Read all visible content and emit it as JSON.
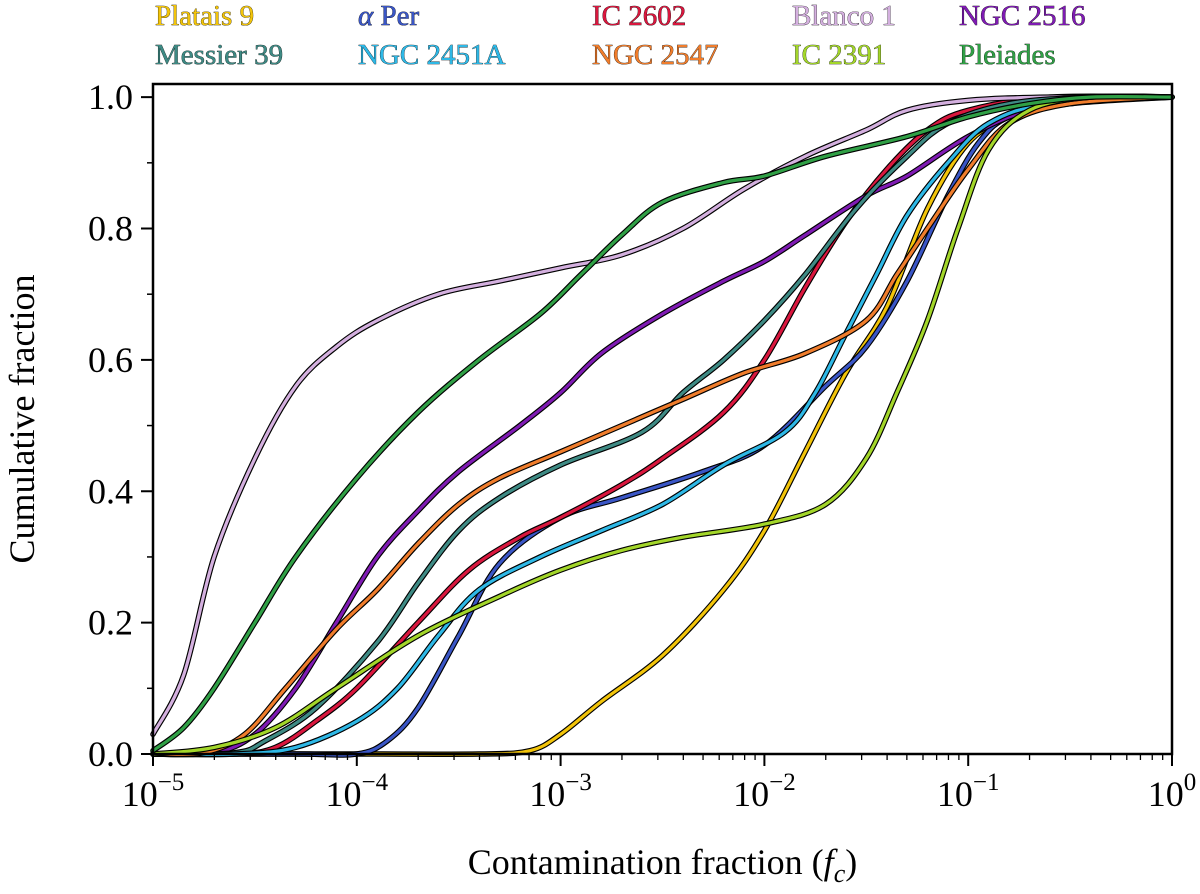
{
  "chart_data": {
    "type": "line",
    "xlabel": "Contamination fraction",
    "xlabel_symbol": "f",
    "xlabel_symbol_sub": "c",
    "ylabel": "Cumulative fraction",
    "xscale": "log",
    "xlim": [
      1e-05,
      1
    ],
    "ylim": [
      0,
      1.02
    ],
    "grid": false,
    "legend_placement": "top (above plot), 5 columns x 2 rows",
    "x_ticks": [
      {
        "base": "10",
        "exp": "−5"
      },
      {
        "base": "10",
        "exp": "−4"
      },
      {
        "base": "10",
        "exp": "−3"
      },
      {
        "base": "10",
        "exp": "−2"
      },
      {
        "base": "10",
        "exp": "−1"
      },
      {
        "base": "10",
        "exp": "0"
      }
    ],
    "y_ticks": [
      "0.0",
      "0.2",
      "0.4",
      "0.6",
      "0.8",
      "1.0"
    ],
    "series": [
      {
        "name": "Platais 9",
        "color": "#f2c40a",
        "points": [
          [
            -5,
            0
          ],
          [
            -4,
            0
          ],
          [
            -3.4,
            0
          ],
          [
            -3.15,
            0.005
          ],
          [
            -3,
            0.03
          ],
          [
            -2.8,
            0.08
          ],
          [
            -2.5,
            0.15
          ],
          [
            -2.2,
            0.25
          ],
          [
            -2,
            0.34
          ],
          [
            -1.8,
            0.46
          ],
          [
            -1.6,
            0.58
          ],
          [
            -1.4,
            0.68
          ],
          [
            -1.2,
            0.83
          ],
          [
            -1,
            0.93
          ],
          [
            -0.8,
            0.97
          ],
          [
            -0.6,
            0.99
          ],
          [
            -0.3,
            1.0
          ],
          [
            0,
            1.0
          ]
        ]
      },
      {
        "name": "α Per",
        "color": "#3a56c6",
        "points": [
          [
            -5,
            0
          ],
          [
            -4.3,
            0
          ],
          [
            -4.0,
            0
          ],
          [
            -3.85,
            0.02
          ],
          [
            -3.7,
            0.07
          ],
          [
            -3.5,
            0.18
          ],
          [
            -3.3,
            0.29
          ],
          [
            -3.0,
            0.36
          ],
          [
            -2.7,
            0.39
          ],
          [
            -2.3,
            0.43
          ],
          [
            -2.0,
            0.47
          ],
          [
            -1.7,
            0.56
          ],
          [
            -1.5,
            0.62
          ],
          [
            -1.3,
            0.72
          ],
          [
            -1.1,
            0.85
          ],
          [
            -0.95,
            0.93
          ],
          [
            -0.8,
            0.97
          ],
          [
            -0.5,
            0.99
          ],
          [
            0,
            1.0
          ]
        ]
      },
      {
        "name": "IC 2602",
        "color": "#d9173e",
        "points": [
          [
            -5,
            0
          ],
          [
            -4.6,
            0
          ],
          [
            -4.4,
            0.01
          ],
          [
            -4.2,
            0.05
          ],
          [
            -4.0,
            0.1
          ],
          [
            -3.7,
            0.2
          ],
          [
            -3.45,
            0.28
          ],
          [
            -3.2,
            0.33
          ],
          [
            -3.0,
            0.36
          ],
          [
            -2.7,
            0.41
          ],
          [
            -2.5,
            0.45
          ],
          [
            -2.2,
            0.52
          ],
          [
            -2.0,
            0.6
          ],
          [
            -1.8,
            0.71
          ],
          [
            -1.6,
            0.81
          ],
          [
            -1.4,
            0.89
          ],
          [
            -1.2,
            0.95
          ],
          [
            -1.0,
            0.98
          ],
          [
            -0.6,
            1.0
          ],
          [
            0,
            1.0
          ]
        ]
      },
      {
        "name": "Blanco 1",
        "color": "#d4b0df",
        "points": [
          [
            -5,
            0.03
          ],
          [
            -4.85,
            0.12
          ],
          [
            -4.7,
            0.3
          ],
          [
            -4.5,
            0.45
          ],
          [
            -4.3,
            0.56
          ],
          [
            -4.1,
            0.62
          ],
          [
            -3.9,
            0.66
          ],
          [
            -3.6,
            0.7
          ],
          [
            -3.3,
            0.72
          ],
          [
            -3.0,
            0.74
          ],
          [
            -2.7,
            0.76
          ],
          [
            -2.4,
            0.8
          ],
          [
            -2.1,
            0.86
          ],
          [
            -1.8,
            0.91
          ],
          [
            -1.5,
            0.95
          ],
          [
            -1.3,
            0.98
          ],
          [
            -1.0,
            0.995
          ],
          [
            -0.6,
            1.0
          ],
          [
            0,
            1.0
          ]
        ]
      },
      {
        "name": "NGC 2516",
        "color": "#7f1bb3",
        "points": [
          [
            -5,
            0
          ],
          [
            -4.7,
            0.002
          ],
          [
            -4.5,
            0.03
          ],
          [
            -4.3,
            0.1
          ],
          [
            -4.1,
            0.2
          ],
          [
            -3.9,
            0.3
          ],
          [
            -3.7,
            0.37
          ],
          [
            -3.5,
            0.43
          ],
          [
            -3.2,
            0.5
          ],
          [
            -3.0,
            0.55
          ],
          [
            -2.8,
            0.61
          ],
          [
            -2.5,
            0.67
          ],
          [
            -2.2,
            0.72
          ],
          [
            -2.0,
            0.75
          ],
          [
            -1.8,
            0.79
          ],
          [
            -1.5,
            0.85
          ],
          [
            -1.3,
            0.88
          ],
          [
            -1.0,
            0.94
          ],
          [
            -0.7,
            0.98
          ],
          [
            -0.3,
            1.0
          ],
          [
            0,
            1.0
          ]
        ]
      },
      {
        "name": "Messier 39",
        "color": "#3e8a84",
        "points": [
          [
            -5,
            0
          ],
          [
            -4.6,
            0.002
          ],
          [
            -4.45,
            0.02
          ],
          [
            -4.2,
            0.07
          ],
          [
            -3.9,
            0.17
          ],
          [
            -3.7,
            0.26
          ],
          [
            -3.5,
            0.34
          ],
          [
            -3.3,
            0.39
          ],
          [
            -3.0,
            0.44
          ],
          [
            -2.6,
            0.49
          ],
          [
            -2.4,
            0.55
          ],
          [
            -2.2,
            0.6
          ],
          [
            -2.0,
            0.66
          ],
          [
            -1.8,
            0.73
          ],
          [
            -1.55,
            0.83
          ],
          [
            -1.3,
            0.91
          ],
          [
            -1.1,
            0.96
          ],
          [
            -0.8,
            0.99
          ],
          [
            -0.4,
            1.0
          ],
          [
            0,
            1.0
          ]
        ]
      },
      {
        "name": "NGC 2451A",
        "color": "#2eb8e6",
        "points": [
          [
            -5,
            0
          ],
          [
            -4.6,
            0
          ],
          [
            -4.3,
            0.01
          ],
          [
            -4.0,
            0.05
          ],
          [
            -3.8,
            0.1
          ],
          [
            -3.6,
            0.18
          ],
          [
            -3.4,
            0.25
          ],
          [
            -3.1,
            0.3
          ],
          [
            -2.8,
            0.34
          ],
          [
            -2.5,
            0.38
          ],
          [
            -2.2,
            0.44
          ],
          [
            -1.9,
            0.49
          ],
          [
            -1.75,
            0.55
          ],
          [
            -1.6,
            0.64
          ],
          [
            -1.45,
            0.73
          ],
          [
            -1.3,
            0.82
          ],
          [
            -1.1,
            0.9
          ],
          [
            -0.9,
            0.96
          ],
          [
            -0.6,
            0.99
          ],
          [
            0,
            1.0
          ]
        ]
      },
      {
        "name": "NGC 2547",
        "color": "#f07d2c",
        "points": [
          [
            -5,
            0
          ],
          [
            -4.75,
            0.002
          ],
          [
            -4.55,
            0.03
          ],
          [
            -4.35,
            0.1
          ],
          [
            -4.1,
            0.19
          ],
          [
            -3.9,
            0.25
          ],
          [
            -3.7,
            0.32
          ],
          [
            -3.5,
            0.38
          ],
          [
            -3.3,
            0.42
          ],
          [
            -3.0,
            0.46
          ],
          [
            -2.7,
            0.5
          ],
          [
            -2.4,
            0.54
          ],
          [
            -2.1,
            0.58
          ],
          [
            -1.8,
            0.61
          ],
          [
            -1.5,
            0.66
          ],
          [
            -1.35,
            0.73
          ],
          [
            -1.2,
            0.8
          ],
          [
            -1.0,
            0.89
          ],
          [
            -0.8,
            0.96
          ],
          [
            -0.5,
            0.99
          ],
          [
            0,
            1.0
          ]
        ]
      },
      {
        "name": "IC 2391",
        "color": "#a3d62a",
        "points": [
          [
            -5,
            0
          ],
          [
            -4.7,
            0.01
          ],
          [
            -4.4,
            0.04
          ],
          [
            -4.1,
            0.1
          ],
          [
            -3.7,
            0.18
          ],
          [
            -3.3,
            0.24
          ],
          [
            -3.0,
            0.28
          ],
          [
            -2.7,
            0.31
          ],
          [
            -2.4,
            0.33
          ],
          [
            -2.0,
            0.35
          ],
          [
            -1.7,
            0.38
          ],
          [
            -1.5,
            0.45
          ],
          [
            -1.35,
            0.55
          ],
          [
            -1.2,
            0.66
          ],
          [
            -1.05,
            0.8
          ],
          [
            -0.9,
            0.92
          ],
          [
            -0.7,
            0.98
          ],
          [
            -0.4,
            1.0
          ],
          [
            0,
            1.0
          ]
        ]
      },
      {
        "name": "Pleiades",
        "color": "#30a046",
        "points": [
          [
            -5,
            0.005
          ],
          [
            -4.85,
            0.04
          ],
          [
            -4.7,
            0.1
          ],
          [
            -4.5,
            0.2
          ],
          [
            -4.3,
            0.3
          ],
          [
            -4.0,
            0.42
          ],
          [
            -3.7,
            0.52
          ],
          [
            -3.4,
            0.6
          ],
          [
            -3.1,
            0.67
          ],
          [
            -2.9,
            0.73
          ],
          [
            -2.7,
            0.79
          ],
          [
            -2.5,
            0.84
          ],
          [
            -2.2,
            0.87
          ],
          [
            -2.0,
            0.88
          ],
          [
            -1.7,
            0.91
          ],
          [
            -1.3,
            0.94
          ],
          [
            -1.0,
            0.97
          ],
          [
            -0.7,
            0.99
          ],
          [
            -0.4,
            1.0
          ],
          [
            0,
            1.0
          ]
        ]
      }
    ]
  }
}
